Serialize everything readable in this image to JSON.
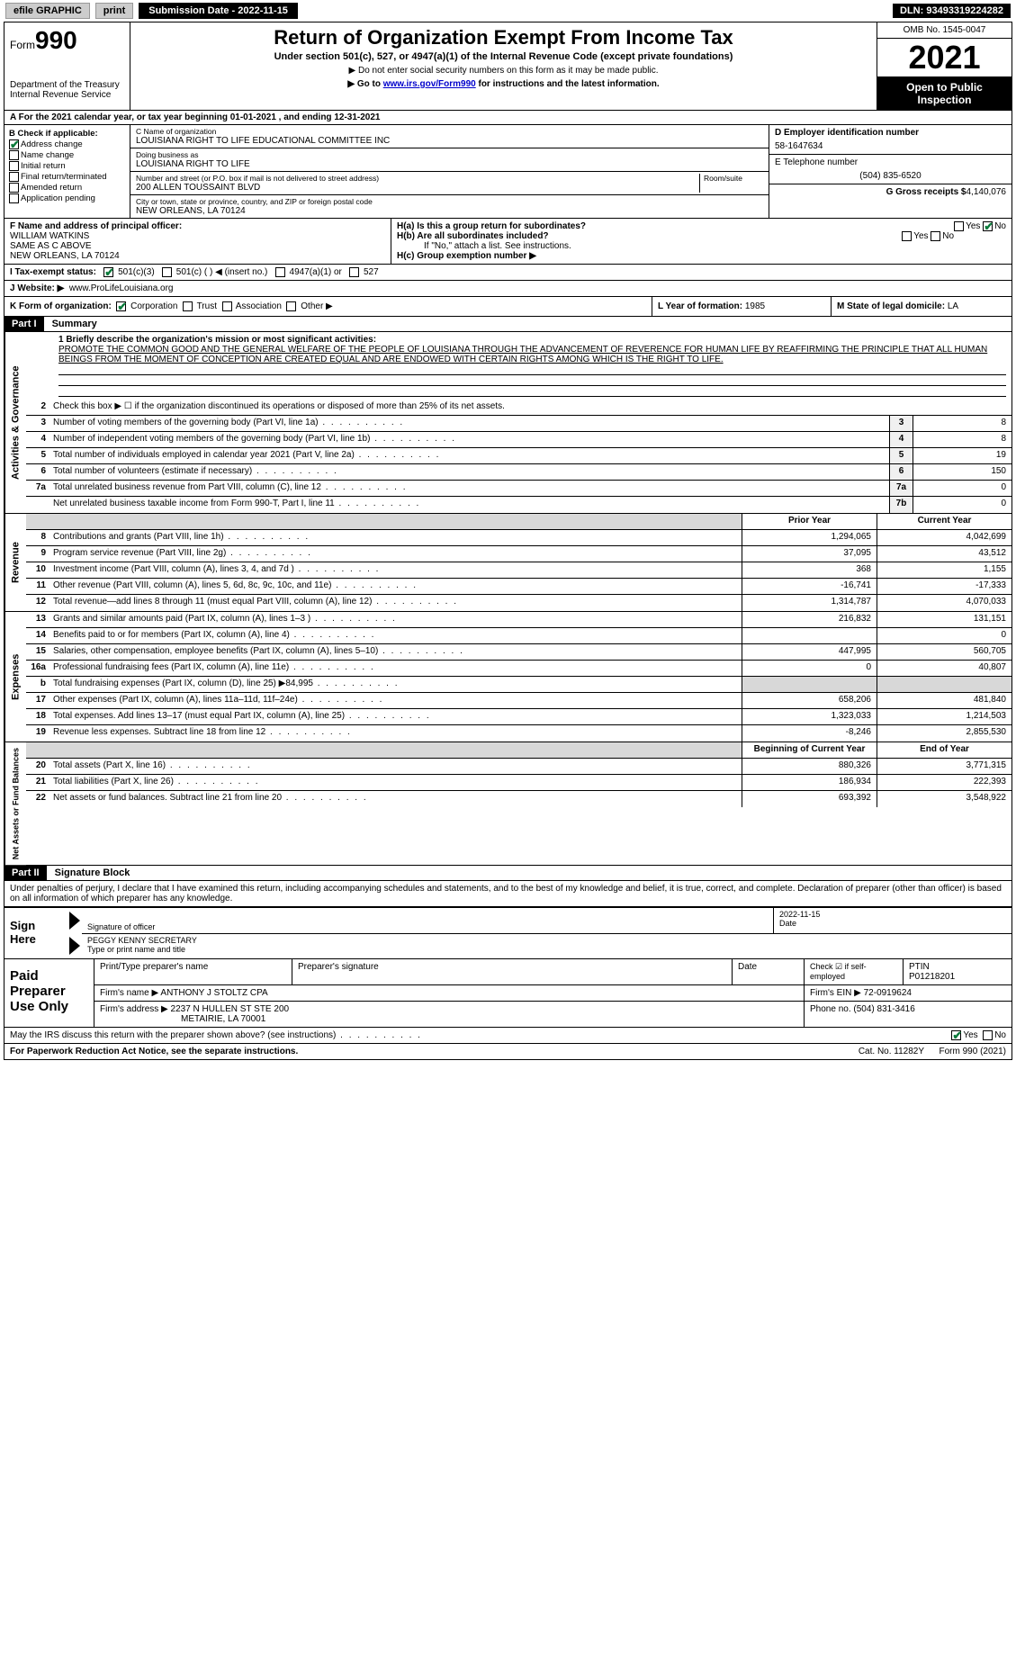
{
  "topbar": {
    "efile": "efile GRAPHIC",
    "print": "print",
    "submission": "Submission Date - 2022-11-15",
    "dln": "DLN: 93493319224282"
  },
  "header": {
    "form_prefix": "Form",
    "form_num": "990",
    "title": "Return of Organization Exempt From Income Tax",
    "subtitle": "Under section 501(c), 527, or 4947(a)(1) of the Internal Revenue Code (except private foundations)",
    "note1": "▶ Do not enter social security numbers on this form as it may be made public.",
    "note2_pre": "▶ Go to ",
    "note2_link": "www.irs.gov/Form990",
    "note2_post": " for instructions and the latest information.",
    "dept": "Department of the Treasury\nInternal Revenue Service",
    "omb": "OMB No. 1545-0047",
    "year": "2021",
    "open": "Open to Public Inspection"
  },
  "rowA": "A For the 2021 calendar year, or tax year beginning 01-01-2021    , and ending 12-31-2021",
  "colB": {
    "hdr": "B Check if applicable:",
    "addr": "Address change",
    "name": "Name change",
    "init": "Initial return",
    "final": "Final return/terminated",
    "amend": "Amended return",
    "app": "Application pending"
  },
  "colC": {
    "name_lab": "C Name of organization",
    "name": "LOUISIANA RIGHT TO LIFE EDUCATIONAL COMMITTEE INC",
    "dba_lab": "Doing business as",
    "dba": "LOUISIANA RIGHT TO LIFE",
    "street_lab": "Number and street (or P.O. box if mail is not delivered to street address)",
    "room_lab": "Room/suite",
    "street": "200 ALLEN TOUSSAINT BLVD",
    "city_lab": "City or town, state or province, country, and ZIP or foreign postal code",
    "city": "NEW ORLEANS, LA  70124"
  },
  "colD": {
    "ein_lab": "D Employer identification number",
    "ein": "58-1647634",
    "tel_lab": "E Telephone number",
    "tel": "(504) 835-6520",
    "gross_lab": "G Gross receipts $",
    "gross": "4,140,076"
  },
  "rowF": {
    "lab": "F Name and address of principal officer:",
    "name": "WILLIAM WATKINS",
    "addr1": "SAME AS C ABOVE",
    "addr2": "NEW ORLEANS, LA  70124"
  },
  "rowH": {
    "ha": "H(a)  Is this a group return for subordinates?",
    "hb": "H(b)  Are all subordinates included?",
    "hb_note": "If \"No,\" attach a list. See instructions.",
    "hc": "H(c)  Group exemption number ▶",
    "yes": "Yes",
    "no": "No"
  },
  "rowI": {
    "lab": "I    Tax-exempt status:",
    "o1": "501(c)(3)",
    "o2": "501(c) (    ) ◀ (insert no.)",
    "o3": "4947(a)(1) or",
    "o4": "527"
  },
  "rowJ": {
    "lab": "J    Website: ▶",
    "val": "www.ProLifeLouisiana.org"
  },
  "rowK": "K Form of organization:",
  "rowK_opts": {
    "corp": "Corporation",
    "trust": "Trust",
    "assoc": "Association",
    "other": "Other ▶"
  },
  "rowL": {
    "lab": "L Year of formation:",
    "val": "1985"
  },
  "rowM": {
    "lab": "M State of legal domicile:",
    "val": "LA"
  },
  "part1": {
    "hdr": "Part I",
    "title": "Summary",
    "l1_lab": "1 Briefly describe the organization's mission or most significant activities:",
    "mission": "PROMOTE THE COMMON GOOD AND THE GENERAL WELFARE OF THE PEOPLE OF LOUISIANA THROUGH THE ADVANCEMENT OF REVERENCE FOR HUMAN LIFE BY REAFFIRMING THE PRINCIPLE THAT ALL HUMAN BEINGS FROM THE MOMENT OF CONCEPTION ARE CREATED EQUAL AND ARE ENDOWED WITH CERTAIN RIGHTS AMONG WHICH IS THE RIGHT TO LIFE.",
    "l2": "Check this box ▶ ☐ if the organization discontinued its operations or disposed of more than 25% of its net assets.",
    "lines_gov": [
      {
        "n": "3",
        "d": "Number of voting members of the governing body (Part VI, line 1a)",
        "box": "3",
        "v": "8"
      },
      {
        "n": "4",
        "d": "Number of independent voting members of the governing body (Part VI, line 1b)",
        "box": "4",
        "v": "8"
      },
      {
        "n": "5",
        "d": "Total number of individuals employed in calendar year 2021 (Part V, line 2a)",
        "box": "5",
        "v": "19"
      },
      {
        "n": "6",
        "d": "Total number of volunteers (estimate if necessary)",
        "box": "6",
        "v": "150"
      },
      {
        "n": "7a",
        "d": "Total unrelated business revenue from Part VIII, column (C), line 12",
        "box": "7a",
        "v": "0"
      },
      {
        "n": "",
        "d": "Net unrelated business taxable income from Form 990-T, Part I, line 11",
        "box": "7b",
        "v": "0"
      }
    ],
    "col_prior": "Prior Year",
    "col_curr": "Current Year",
    "lines_rev": [
      {
        "n": "8",
        "d": "Contributions and grants (Part VIII, line 1h)",
        "p": "1,294,065",
        "c": "4,042,699"
      },
      {
        "n": "9",
        "d": "Program service revenue (Part VIII, line 2g)",
        "p": "37,095",
        "c": "43,512"
      },
      {
        "n": "10",
        "d": "Investment income (Part VIII, column (A), lines 3, 4, and 7d )",
        "p": "368",
        "c": "1,155"
      },
      {
        "n": "11",
        "d": "Other revenue (Part VIII, column (A), lines 5, 6d, 8c, 9c, 10c, and 11e)",
        "p": "-16,741",
        "c": "-17,333"
      },
      {
        "n": "12",
        "d": "Total revenue—add lines 8 through 11 (must equal Part VIII, column (A), line 12)",
        "p": "1,314,787",
        "c": "4,070,033"
      }
    ],
    "lines_exp": [
      {
        "n": "13",
        "d": "Grants and similar amounts paid (Part IX, column (A), lines 1–3 )",
        "p": "216,832",
        "c": "131,151"
      },
      {
        "n": "14",
        "d": "Benefits paid to or for members (Part IX, column (A), line 4)",
        "p": "",
        "c": "0"
      },
      {
        "n": "15",
        "d": "Salaries, other compensation, employee benefits (Part IX, column (A), lines 5–10)",
        "p": "447,995",
        "c": "560,705"
      },
      {
        "n": "16a",
        "d": "Professional fundraising fees (Part IX, column (A), line 11e)",
        "p": "0",
        "c": "40,807"
      },
      {
        "n": "b",
        "d": "Total fundraising expenses (Part IX, column (D), line 25) ▶84,995",
        "p": "",
        "c": "",
        "shade": true
      },
      {
        "n": "17",
        "d": "Other expenses (Part IX, column (A), lines 11a–11d, 11f–24e)",
        "p": "658,206",
        "c": "481,840"
      },
      {
        "n": "18",
        "d": "Total expenses. Add lines 13–17 (must equal Part IX, column (A), line 25)",
        "p": "1,323,033",
        "c": "1,214,503"
      },
      {
        "n": "19",
        "d": "Revenue less expenses. Subtract line 18 from line 12",
        "p": "-8,246",
        "c": "2,855,530"
      }
    ],
    "col_begin": "Beginning of Current Year",
    "col_end": "End of Year",
    "lines_net": [
      {
        "n": "20",
        "d": "Total assets (Part X, line 16)",
        "p": "880,326",
        "c": "3,771,315"
      },
      {
        "n": "21",
        "d": "Total liabilities (Part X, line 26)",
        "p": "186,934",
        "c": "222,393"
      },
      {
        "n": "22",
        "d": "Net assets or fund balances. Subtract line 21 from line 20",
        "p": "693,392",
        "c": "3,548,922"
      }
    ],
    "side_gov": "Activities & Governance",
    "side_rev": "Revenue",
    "side_exp": "Expenses",
    "side_net": "Net Assets or Fund Balances"
  },
  "part2": {
    "hdr": "Part II",
    "title": "Signature Block",
    "decl": "Under penalties of perjury, I declare that I have examined this return, including accompanying schedules and statements, and to the best of my knowledge and belief, it is true, correct, and complete. Declaration of preparer (other than officer) is based on all information of which preparer has any knowledge.",
    "sign_here": "Sign Here",
    "sig_officer": "Signature of officer",
    "sig_date": "2022-11-15",
    "date_lab": "Date",
    "officer_name": "PEGGY KENNY  SECRETARY",
    "officer_title_lab": "Type or print name and title",
    "paid": "Paid Preparer Use Only",
    "prep_name_lab": "Print/Type preparer's name",
    "prep_sig_lab": "Preparer's signature",
    "prep_date_lab": "Date",
    "prep_check": "Check ☑ if self-employed",
    "ptin_lab": "PTIN",
    "ptin": "P01218201",
    "firm_name_lab": "Firm's name    ▶",
    "firm_name": "ANTHONY J STOLTZ CPA",
    "firm_ein_lab": "Firm's EIN ▶",
    "firm_ein": "72-0919624",
    "firm_addr_lab": "Firm's address ▶",
    "firm_addr": "2237 N HULLEN ST STE 200",
    "firm_city": "METAIRIE, LA  70001",
    "phone_lab": "Phone no.",
    "phone": "(504) 831-3416",
    "discuss": "May the IRS discuss this return with the preparer shown above? (see instructions)",
    "yes": "Yes",
    "no": "No"
  },
  "footer": {
    "pra": "For Paperwork Reduction Act Notice, see the separate instructions.",
    "cat": "Cat. No. 11282Y",
    "form": "Form 990 (2021)"
  },
  "colors": {
    "link": "#0000cc",
    "check": "#0a7a3a",
    "shade": "#d8d8d8"
  }
}
